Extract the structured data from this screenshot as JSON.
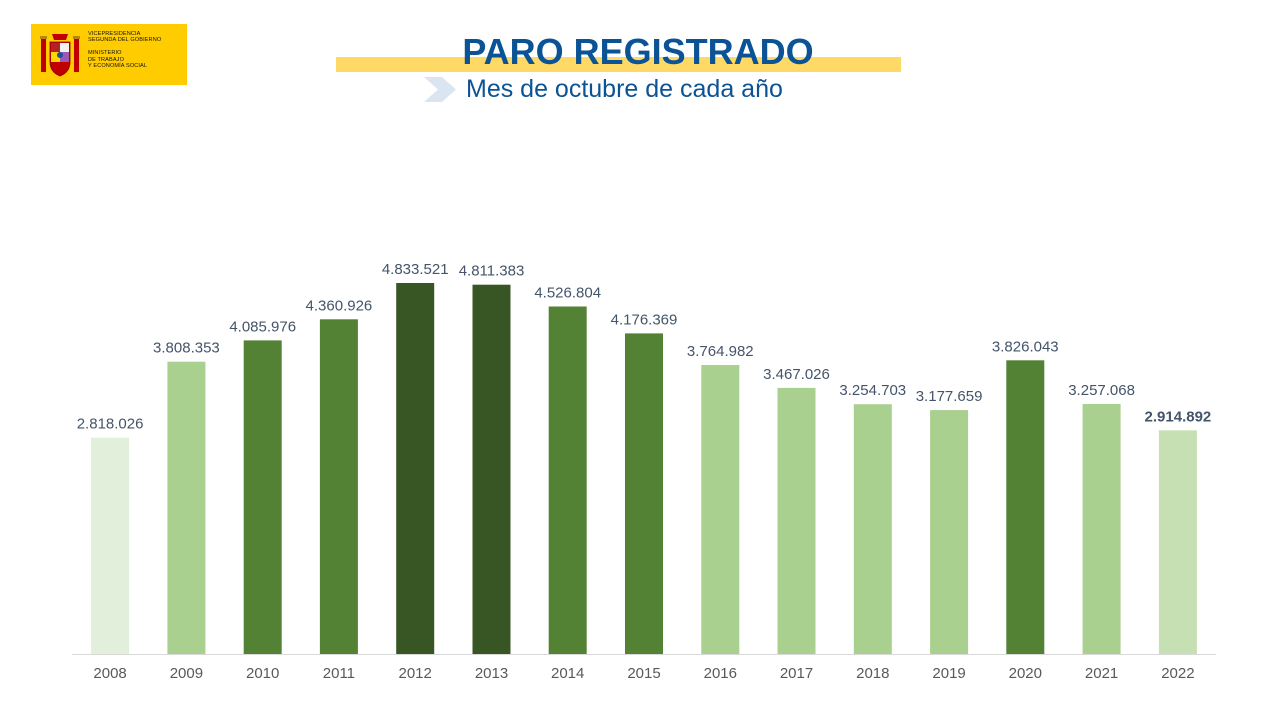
{
  "header": {
    "logo_text": "VICEPRESIDENCIA\nSEGUNDA DEL GOBIERNO\n\nMINISTERIO\nDE TRABAJO\nY ECONOMÍA SOCIAL",
    "title": "PARO REGISTRADO",
    "subtitle": "Mes de octubre de cada año"
  },
  "colors": {
    "title": "#0b5394",
    "title_band": "#ffd966",
    "logo_bg": "#ffcc00",
    "label_text": "#44546a",
    "axis_text": "#595959",
    "axis_line": "#d9d9d9"
  },
  "chart_data": {
    "type": "bar",
    "title": "",
    "xlabel": "",
    "ylabel": "",
    "ylim": [
      0,
      4833521
    ],
    "grid": false,
    "legend": "none",
    "categories": [
      "2008",
      "2009",
      "2010",
      "2011",
      "2012",
      "2013",
      "2014",
      "2015",
      "2016",
      "2017",
      "2018",
      "2019",
      "2020",
      "2021",
      "2022"
    ],
    "values": [
      2818026,
      3808353,
      4085976,
      4360926,
      4833521,
      4811383,
      4526804,
      4176369,
      3764982,
      3467026,
      3254703,
      3177659,
      3826043,
      3257068,
      2914892
    ],
    "data_labels": [
      "2.818.026",
      "3.808.353",
      "4.085.976",
      "4.360.926",
      "4.833.521",
      "4.811.383",
      "4.526.804",
      "4.176.369",
      "3.764.982",
      "3.467.026",
      "3.254.703",
      "3.177.659",
      "3.826.043",
      "3.257.068",
      "2.914.892"
    ],
    "bar_colors": [
      "#e2efda",
      "#a9d08e",
      "#548235",
      "#548235",
      "#375623",
      "#375623",
      "#548235",
      "#548235",
      "#a9d08e",
      "#a9d08e",
      "#a9d08e",
      "#a9d08e",
      "#548235",
      "#a9d08e",
      "#c6e0b4"
    ],
    "bold_labels": [
      "2022"
    ]
  }
}
